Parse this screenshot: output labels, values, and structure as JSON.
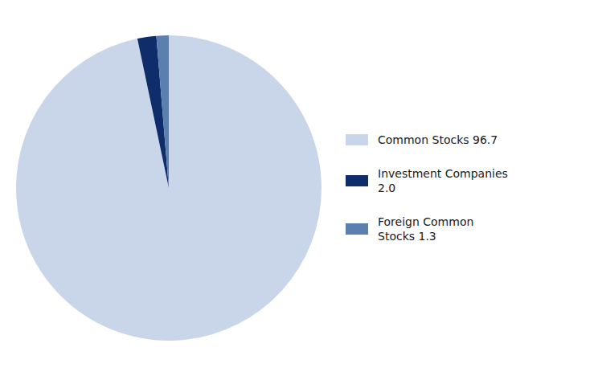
{
  "chart_data": {
    "type": "pie",
    "categories": [
      "Common Stocks 96.7",
      "Investment Companies\n2.0",
      "Foreign Common\nStocks 1.3"
    ],
    "values": [
      96.7,
      2.0,
      1.3
    ],
    "colors": [
      "#c9d5e8",
      "#0f2d6b",
      "#5b7fae"
    ],
    "legend": "right"
  }
}
